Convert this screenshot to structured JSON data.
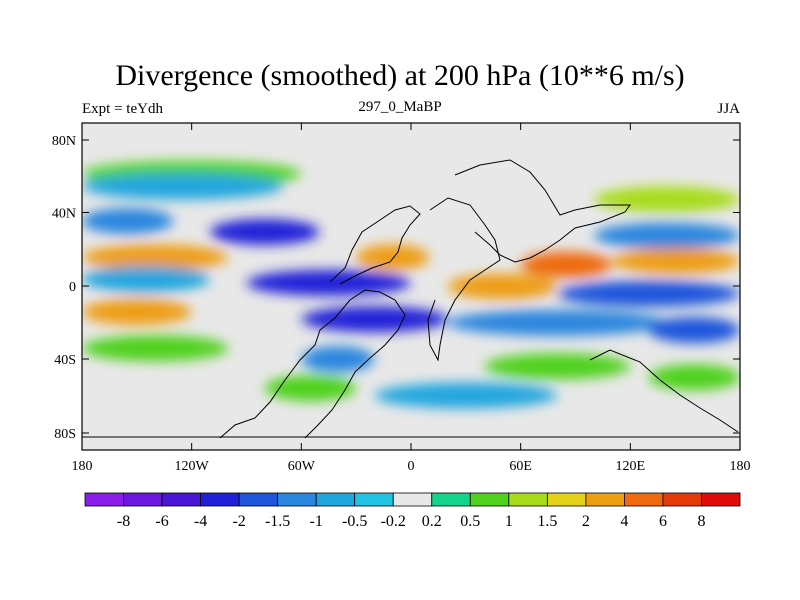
{
  "chart_data": {
    "type": "heatmap",
    "title": "Divergence (smoothed) at 200 hPa (10**6 m/s)",
    "left_label": "Expt = teYdh",
    "center_label": "297_0_MaBP",
    "right_label": "JJA",
    "x_ticks": [
      "180",
      "120W",
      "60W",
      "0",
      "60E",
      "120E",
      "180"
    ],
    "y_ticks": [
      "80N",
      "40N",
      "0",
      "40S",
      "80S"
    ],
    "x_range": [
      -180,
      180
    ],
    "y_range": [
      -90,
      90
    ],
    "colorbar": {
      "labels": [
        "-8",
        "-6",
        "-4",
        "-2",
        "-1.5",
        "-1",
        "-0.5",
        "-0.2",
        "0.2",
        "0.5",
        "1",
        "1.5",
        "2",
        "4",
        "6",
        "8"
      ],
      "colors": [
        "#8a1ee8",
        "#6a17df",
        "#4a16d6",
        "#2020d8",
        "#1f55db",
        "#2b86de",
        "#20a6de",
        "#22c3e2",
        "#e8e8e8",
        "#14d38a",
        "#4fd21e",
        "#a8dc1a",
        "#e4d21a",
        "#ee9e12",
        "#ef6a0c",
        "#e43a0a",
        "#df0a0a"
      ]
    },
    "bands": [
      {
        "lat": 62,
        "lon0": -180,
        "lon1": -60,
        "value": 0.6
      },
      {
        "lat": 55,
        "lon0": -180,
        "lon1": -70,
        "value": -0.7
      },
      {
        "lat": 48,
        "lon0": 100,
        "lon1": 180,
        "value": 1.0
      },
      {
        "lat": 36,
        "lon0": -180,
        "lon1": -130,
        "value": -1.2
      },
      {
        "lat": 30,
        "lon0": -110,
        "lon1": -50,
        "value": -3.0
      },
      {
        "lat": 28,
        "lon0": 100,
        "lon1": 180,
        "value": -1.2
      },
      {
        "lat": 16,
        "lon0": -180,
        "lon1": -100,
        "value": 2.0
      },
      {
        "lat": 16,
        "lon0": -30,
        "lon1": 10,
        "value": 3.0
      },
      {
        "lat": 12,
        "lon0": 60,
        "lon1": 110,
        "value": 4.0
      },
      {
        "lat": 14,
        "lon0": 110,
        "lon1": 180,
        "value": 2.0
      },
      {
        "lat": 4,
        "lon0": -180,
        "lon1": -110,
        "value": -1.0
      },
      {
        "lat": 2,
        "lon0": -90,
        "lon1": 0,
        "value": -2.5
      },
      {
        "lat": 0,
        "lon0": 20,
        "lon1": 80,
        "value": 2.5
      },
      {
        "lat": -4,
        "lon0": 80,
        "lon1": 180,
        "value": -2.0
      },
      {
        "lat": -14,
        "lon0": -180,
        "lon1": -120,
        "value": 2.0
      },
      {
        "lat": -18,
        "lon0": -60,
        "lon1": 20,
        "value": -4.0
      },
      {
        "lat": -20,
        "lon0": 20,
        "lon1": 140,
        "value": -1.5
      },
      {
        "lat": -24,
        "lon0": 130,
        "lon1": 180,
        "value": -2.0
      },
      {
        "lat": -34,
        "lon0": -180,
        "lon1": -100,
        "value": 0.8
      },
      {
        "lat": -40,
        "lon0": -60,
        "lon1": -20,
        "value": -1.5
      },
      {
        "lat": -44,
        "lon0": 40,
        "lon1": 120,
        "value": 0.9
      },
      {
        "lat": -50,
        "lon0": 130,
        "lon1": 180,
        "value": 0.8
      },
      {
        "lat": -56,
        "lon0": -80,
        "lon1": -30,
        "value": 0.9
      },
      {
        "lat": -60,
        "lon0": -20,
        "lon1": 80,
        "value": -0.8
      }
    ]
  }
}
